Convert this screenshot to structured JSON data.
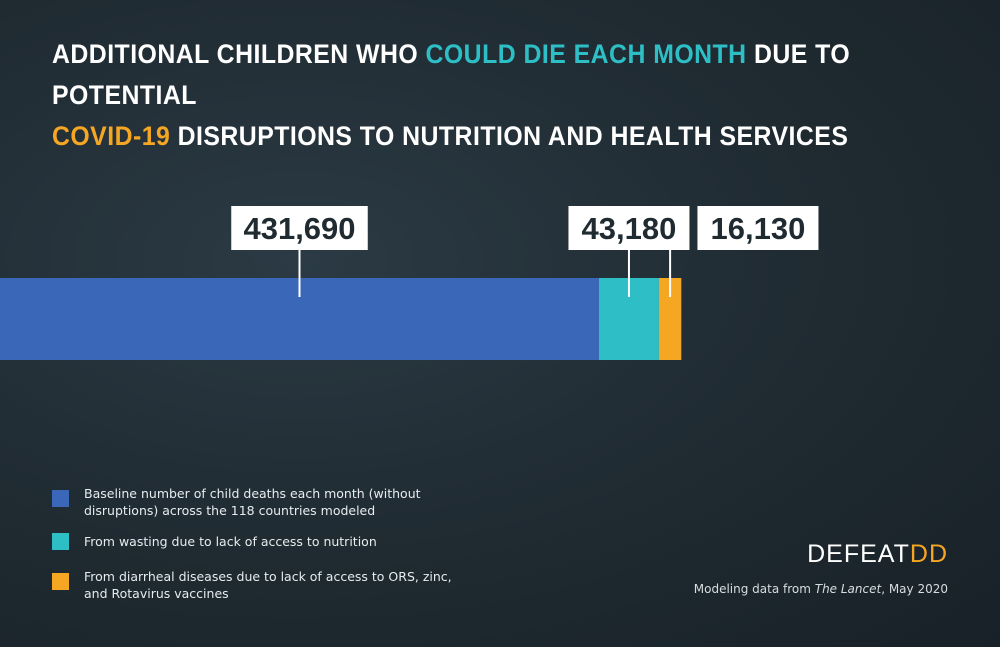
{
  "title": {
    "part1": "ADDITIONAL CHILDREN WHO ",
    "highlight1": "COULD DIE EACH MONTH",
    "part2": " DUE TO POTENTIAL ",
    "highlight2": "COVID-19",
    "part3": " DISRUPTIONS TO NUTRITION AND HEALTH SERVICES"
  },
  "chart_data": {
    "type": "bar",
    "orientation": "horizontal-stacked",
    "series": [
      {
        "label": "431,690",
        "value": 431690,
        "color": "#3a67b8"
      },
      {
        "label": "43,180",
        "value": 43180,
        "color": "#2ebfc6"
      },
      {
        "label": "16,130",
        "value": 16130,
        "color": "#f5a623"
      }
    ]
  },
  "legend": {
    "items": [
      {
        "text": "Baseline number of child deaths each month (without disruptions) across the  118 countries modeled",
        "color": "#3a67b8"
      },
      {
        "text": "From wasting due to lack of access to nutrition",
        "color": "#2ebfc6"
      },
      {
        "text": "From diarrheal diseases due to lack of access to ORS, zinc, and Rotavirus vaccines",
        "color": "#f5a623"
      }
    ]
  },
  "brand": {
    "main": "DEFEAT",
    "accent": "DD"
  },
  "source": {
    "prefix": "Modeling data from ",
    "italic": "The Lancet",
    "suffix": ", May 2020"
  }
}
